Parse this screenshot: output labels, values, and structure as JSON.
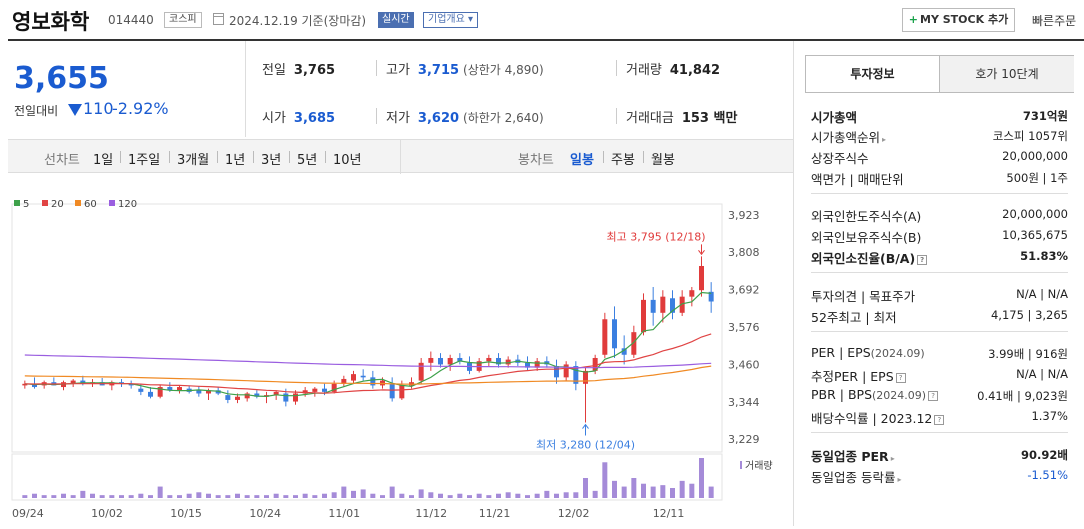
{
  "header": {
    "company_name": "영보화학",
    "code": "014440",
    "market": "코스피",
    "base_date": "2024.12.19  기준(장마감)",
    "realtime_label": "실시간",
    "corp_info_label": "기업개요 ▾",
    "mystock_label": "MY STOCK 추가",
    "quick_order_label": "빠른주문"
  },
  "price": {
    "current": "3,655",
    "change_label": "전일대비",
    "change": "110",
    "change_pct": "-2.92%"
  },
  "stats": {
    "prev_close": {
      "label": "전일",
      "value": "3,765"
    },
    "high": {
      "label": "고가",
      "value": "3,715",
      "sub": "(상한가 4,890)"
    },
    "volume": {
      "label": "거래량",
      "value": "41,842"
    },
    "open": {
      "label": "시가",
      "value": "3,685"
    },
    "low": {
      "label": "저가",
      "value": "3,620",
      "sub": "(하한가 2,640)"
    },
    "trade_value": {
      "label": "거래대금",
      "value": "153 백만"
    }
  },
  "periods": {
    "line_label": "선차트",
    "line_items": [
      "1일",
      "1주일",
      "3개월",
      "1년",
      "3년",
      "5년",
      "10년"
    ],
    "candle_label": "봉차트",
    "candle_items": [
      "일봉",
      "주봉",
      "월봉"
    ],
    "selected": "일봉"
  },
  "chart_data": {
    "type": "candlestick",
    "legend": [
      {
        "name": "5",
        "color": "#3ea14a"
      },
      {
        "name": "20",
        "color": "#e04444"
      },
      {
        "name": "60",
        "color": "#f08a24"
      },
      {
        "name": "120",
        "color": "#9a5ee0"
      }
    ],
    "ylim": [
      3229,
      3923
    ],
    "y_ticks": [
      "3,923",
      "3,808",
      "3,692",
      "3,576",
      "3,460",
      "3,344",
      "3,229"
    ],
    "x_ticks": [
      "09/24",
      "10/02",
      "10/15",
      "10/24",
      "11/01",
      "11/12",
      "11/21",
      "12/02",
      "12/11"
    ],
    "max_label": "최고 3,795 (12/18)",
    "min_label": "최저 3,280 (12/04)",
    "volume_label": "거래량",
    "candles": [
      {
        "o": 3395,
        "h": 3410,
        "l": 3385,
        "c": 3400
      },
      {
        "o": 3400,
        "h": 3420,
        "l": 3385,
        "c": 3390
      },
      {
        "o": 3395,
        "h": 3410,
        "l": 3385,
        "c": 3405
      },
      {
        "o": 3405,
        "h": 3420,
        "l": 3395,
        "c": 3395
      },
      {
        "o": 3390,
        "h": 3410,
        "l": 3380,
        "c": 3405
      },
      {
        "o": 3400,
        "h": 3415,
        "l": 3390,
        "c": 3410
      },
      {
        "o": 3410,
        "h": 3425,
        "l": 3395,
        "c": 3400
      },
      {
        "o": 3400,
        "h": 3415,
        "l": 3390,
        "c": 3405
      },
      {
        "o": 3405,
        "h": 3418,
        "l": 3395,
        "c": 3395
      },
      {
        "o": 3395,
        "h": 3410,
        "l": 3380,
        "c": 3405
      },
      {
        "o": 3405,
        "h": 3415,
        "l": 3390,
        "c": 3400
      },
      {
        "o": 3400,
        "h": 3410,
        "l": 3385,
        "c": 3395
      },
      {
        "o": 3385,
        "h": 3400,
        "l": 3365,
        "c": 3375
      },
      {
        "o": 3375,
        "h": 3390,
        "l": 3355,
        "c": 3360
      },
      {
        "o": 3360,
        "h": 3395,
        "l": 3355,
        "c": 3390
      },
      {
        "o": 3390,
        "h": 3405,
        "l": 3375,
        "c": 3380
      },
      {
        "o": 3380,
        "h": 3395,
        "l": 3370,
        "c": 3390
      },
      {
        "o": 3385,
        "h": 3395,
        "l": 3370,
        "c": 3375
      },
      {
        "o": 3380,
        "h": 3392,
        "l": 3360,
        "c": 3370
      },
      {
        "o": 3370,
        "h": 3385,
        "l": 3350,
        "c": 3380
      },
      {
        "o": 3380,
        "h": 3390,
        "l": 3365,
        "c": 3370
      },
      {
        "o": 3365,
        "h": 3380,
        "l": 3340,
        "c": 3350
      },
      {
        "o": 3350,
        "h": 3370,
        "l": 3340,
        "c": 3360
      },
      {
        "o": 3355,
        "h": 3375,
        "l": 3345,
        "c": 3370
      },
      {
        "o": 3370,
        "h": 3380,
        "l": 3355,
        "c": 3360
      },
      {
        "o": 3360,
        "h": 3375,
        "l": 3340,
        "c": 3365
      },
      {
        "o": 3365,
        "h": 3380,
        "l": 3350,
        "c": 3375
      },
      {
        "o": 3370,
        "h": 3385,
        "l": 3330,
        "c": 3345
      },
      {
        "o": 3345,
        "h": 3380,
        "l": 3335,
        "c": 3370
      },
      {
        "o": 3370,
        "h": 3390,
        "l": 3360,
        "c": 3380
      },
      {
        "o": 3375,
        "h": 3390,
        "l": 3360,
        "c": 3385
      },
      {
        "o": 3385,
        "h": 3400,
        "l": 3365,
        "c": 3375
      },
      {
        "o": 3375,
        "h": 3410,
        "l": 3370,
        "c": 3400
      },
      {
        "o": 3400,
        "h": 3425,
        "l": 3390,
        "c": 3415
      },
      {
        "o": 3410,
        "h": 3440,
        "l": 3400,
        "c": 3430
      },
      {
        "o": 3425,
        "h": 3445,
        "l": 3410,
        "c": 3420
      },
      {
        "o": 3420,
        "h": 3440,
        "l": 3385,
        "c": 3395
      },
      {
        "o": 3395,
        "h": 3420,
        "l": 3385,
        "c": 3410
      },
      {
        "o": 3400,
        "h": 3420,
        "l": 3345,
        "c": 3355
      },
      {
        "o": 3355,
        "h": 3410,
        "l": 3350,
        "c": 3395
      },
      {
        "o": 3395,
        "h": 3420,
        "l": 3385,
        "c": 3405
      },
      {
        "o": 3410,
        "h": 3480,
        "l": 3400,
        "c": 3465
      },
      {
        "o": 3465,
        "h": 3500,
        "l": 3440,
        "c": 3480
      },
      {
        "o": 3480,
        "h": 3495,
        "l": 3450,
        "c": 3460
      },
      {
        "o": 3460,
        "h": 3490,
        "l": 3440,
        "c": 3480
      },
      {
        "o": 3480,
        "h": 3495,
        "l": 3460,
        "c": 3470
      },
      {
        "o": 3465,
        "h": 3485,
        "l": 3430,
        "c": 3440
      },
      {
        "o": 3440,
        "h": 3480,
        "l": 3435,
        "c": 3470
      },
      {
        "o": 3470,
        "h": 3490,
        "l": 3455,
        "c": 3480
      },
      {
        "o": 3480,
        "h": 3495,
        "l": 3450,
        "c": 3460
      },
      {
        "o": 3460,
        "h": 3485,
        "l": 3450,
        "c": 3475
      },
      {
        "o": 3475,
        "h": 3490,
        "l": 3455,
        "c": 3465
      },
      {
        "o": 3465,
        "h": 3485,
        "l": 3440,
        "c": 3450
      },
      {
        "o": 3450,
        "h": 3480,
        "l": 3440,
        "c": 3470
      },
      {
        "o": 3470,
        "h": 3485,
        "l": 3450,
        "c": 3460
      },
      {
        "o": 3455,
        "h": 3475,
        "l": 3400,
        "c": 3420
      },
      {
        "o": 3420,
        "h": 3470,
        "l": 3410,
        "c": 3460
      },
      {
        "o": 3455,
        "h": 3470,
        "l": 3380,
        "c": 3400
      },
      {
        "o": 3400,
        "h": 3450,
        "l": 3280,
        "c": 3440
      },
      {
        "o": 3440,
        "h": 3490,
        "l": 3430,
        "c": 3480
      },
      {
        "o": 3490,
        "h": 3620,
        "l": 3480,
        "c": 3600
      },
      {
        "o": 3600,
        "h": 3640,
        "l": 3480,
        "c": 3510
      },
      {
        "o": 3510,
        "h": 3550,
        "l": 3460,
        "c": 3490
      },
      {
        "o": 3490,
        "h": 3580,
        "l": 3480,
        "c": 3560
      },
      {
        "o": 3560,
        "h": 3680,
        "l": 3550,
        "c": 3660
      },
      {
        "o": 3660,
        "h": 3700,
        "l": 3580,
        "c": 3620
      },
      {
        "o": 3620,
        "h": 3690,
        "l": 3590,
        "c": 3670
      },
      {
        "o": 3665,
        "h": 3690,
        "l": 3600,
        "c": 3620
      },
      {
        "o": 3620,
        "h": 3690,
        "l": 3610,
        "c": 3670
      },
      {
        "o": 3670,
        "h": 3700,
        "l": 3640,
        "c": 3690
      },
      {
        "o": 3690,
        "h": 3795,
        "l": 3670,
        "c": 3765
      },
      {
        "o": 3685,
        "h": 3715,
        "l": 3620,
        "c": 3655
      }
    ],
    "volume": [
      2,
      3,
      2,
      2,
      3,
      2,
      5,
      3,
      2,
      2,
      2,
      2,
      3,
      2,
      8,
      2,
      2,
      3,
      4,
      3,
      2,
      2,
      3,
      2,
      2,
      2,
      3,
      2,
      2,
      3,
      2,
      3,
      4,
      8,
      5,
      6,
      3,
      2,
      8,
      3,
      2,
      6,
      4,
      3,
      2,
      3,
      2,
      3,
      2,
      3,
      4,
      3,
      2,
      3,
      5,
      3,
      4,
      4,
      14,
      5,
      25,
      12,
      8,
      14,
      10,
      8,
      9,
      7,
      12,
      10,
      28,
      8
    ]
  },
  "invest_info": {
    "tabs": [
      "투자정보",
      "호가 10단계"
    ],
    "market_cap": {
      "label": "시가총액",
      "value": "731억원"
    },
    "cap_rank": {
      "label": "시가총액순위",
      "value": "코스피 1057위"
    },
    "shares": {
      "label": "상장주식수",
      "value": "20,000,000"
    },
    "par_unit": {
      "label": "액면가 | 매매단위",
      "value": "500원 | 1주"
    },
    "foreign_limit": {
      "label": "외국인한도주식수(A)",
      "value": "20,000,000"
    },
    "foreign_hold": {
      "label": "외국인보유주식수(B)",
      "value": "10,365,675"
    },
    "foreign_rate": {
      "label": "외국인소진율(B/A)",
      "value": "51.83%"
    },
    "opinion": {
      "label": "투자의견 | 목표주가",
      "value": "N/A | N/A"
    },
    "high52": {
      "label": "52주최고 | 최저",
      "value": "4,175 | 3,265"
    },
    "per_eps": {
      "label": "PER | EPS",
      "sub": "(2024.09)",
      "value": "3.99배 | 916원"
    },
    "est_per_eps": {
      "label": "추정PER | EPS",
      "value": "N/A | N/A"
    },
    "pbr_bps": {
      "label": "PBR | BPS",
      "sub": "(2024.09)",
      "value": "0.41배 | 9,023원"
    },
    "dividend": {
      "label": "배당수익률 | 2023.12",
      "value": "1.37%"
    },
    "sector_per": {
      "label": "동일업종 PER",
      "value": "90.92배"
    },
    "sector_rate": {
      "label": "동일업종 등락률",
      "value": "-1.51%"
    },
    "colors": {
      "down": "#1a5bd0",
      "up": "#e03b3b"
    }
  }
}
